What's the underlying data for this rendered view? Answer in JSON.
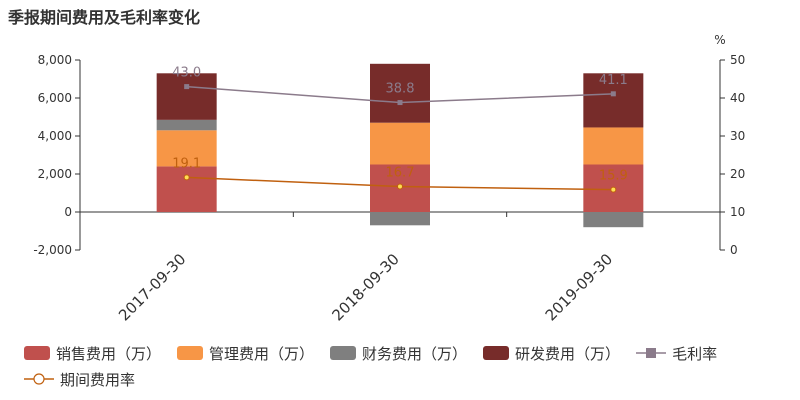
{
  "title": "季报期间费用及毛利率变化",
  "chart_data": {
    "type": "bar",
    "stacked": true,
    "categories": [
      "2017-09-30",
      "2018-09-30",
      "2019-09-30"
    ],
    "series": [
      {
        "name": "销售费用（万）",
        "type": "bar",
        "axis": "left",
        "color": "#c0504d",
        "values": [
          2400,
          2500,
          2500
        ]
      },
      {
        "name": "管理费用（万）",
        "type": "bar",
        "axis": "left",
        "color": "#f79646",
        "values": [
          1900,
          2200,
          1950
        ]
      },
      {
        "name": "财务费用（万）",
        "type": "bar",
        "axis": "left",
        "color": "#7f7f7f",
        "values": [
          550,
          -700,
          -800
        ]
      },
      {
        "name": "研发费用（万）",
        "type": "bar",
        "axis": "left",
        "color": "#772c2a",
        "values": [
          2450,
          3100,
          2850
        ]
      },
      {
        "name": "毛利率",
        "type": "line",
        "axis": "right",
        "color": "#8b7b8b",
        "marker": "square",
        "values": [
          43.0,
          38.8,
          41.1
        ]
      },
      {
        "name": "期间费用率",
        "type": "line",
        "axis": "right",
        "color": "#c0600f",
        "marker": "circle",
        "values": [
          19.1,
          16.7,
          15.9
        ]
      }
    ],
    "y_left": {
      "min": -2000,
      "max": 8000,
      "ticks": [
        "-2,000",
        "0",
        "2,000",
        "4,000",
        "6,000",
        "8,000"
      ]
    },
    "y_right": {
      "min": 0,
      "max": 50,
      "unit": "%",
      "ticks": [
        "0",
        "10",
        "20",
        "30",
        "40",
        "50"
      ]
    },
    "grid": false,
    "legend_position": "bottom"
  }
}
